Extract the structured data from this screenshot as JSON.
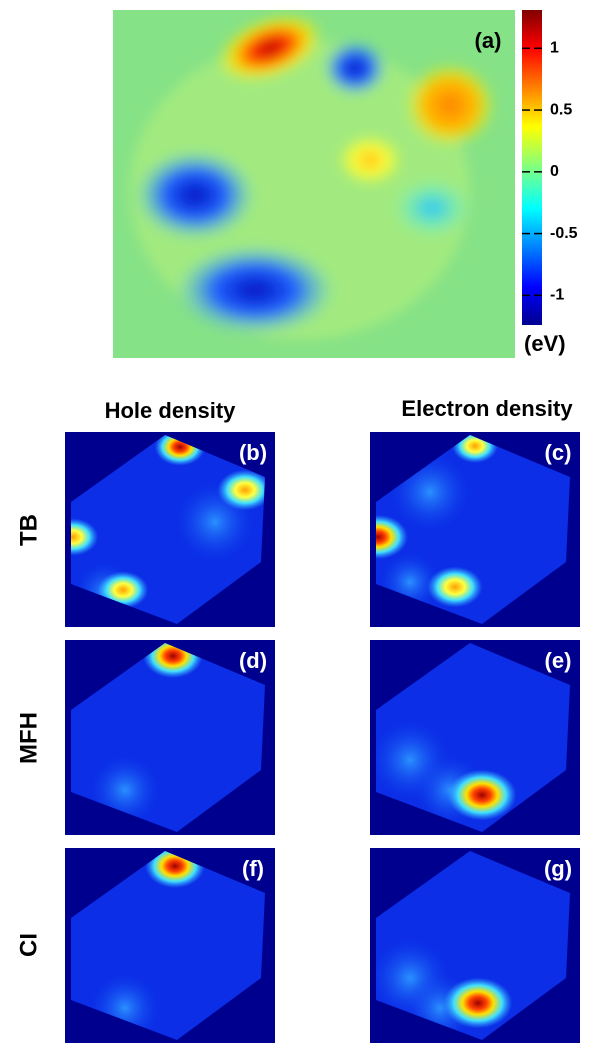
{
  "panel_a": {
    "label": "(a)",
    "colorbar": {
      "ylim": [
        -1.24,
        1.31
      ],
      "yticks": [
        -1,
        -0.5,
        0,
        0.5,
        1
      ],
      "unit": "(eV)"
    }
  },
  "columns": [
    "Hole density",
    "Electron density"
  ],
  "rows": [
    "TB",
    "MFH",
    "CI"
  ],
  "panels": [
    "(b)",
    "(c)",
    "(d)",
    "(e)",
    "(f)",
    "(g)"
  ]
}
